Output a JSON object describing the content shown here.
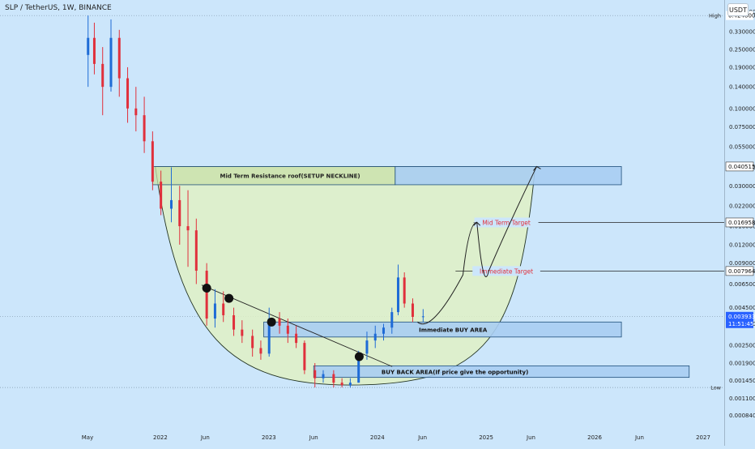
{
  "header": {
    "symbol_line": "SLP / TetherUS, 1W, BINANCE",
    "currency_button": "USDT"
  },
  "colors": {
    "background": "#cce6fb",
    "candle_up": "#1e6bd6",
    "candle_down": "#e0303c",
    "cup_fill": "#dff0c4",
    "zone_fill": "#a9cdf2",
    "zone_border": "#1f4f7a",
    "green_box": "#c8e0a8",
    "target_label": "#e0303c",
    "price_tag": "#2962ff"
  },
  "chart_data": {
    "type": "candlestick",
    "scale": "log",
    "y_axis_ticks": [
      0.45,
      0.33,
      0.25,
      0.19,
      0.14,
      0.1,
      0.075,
      0.055,
      0.04,
      0.03,
      0.022,
      0.016,
      0.012,
      0.009,
      0.0065,
      0.0045,
      0.0035,
      0.0025,
      0.0019,
      0.00145,
      0.0011,
      0.00084
    ],
    "y_axis_tick_labels": [
      "0.450000",
      "0.330000",
      "0.250000",
      "0.190000",
      "0.140000",
      "0.100000",
      "0.075000",
      "0.055000",
      "0.040000",
      "0.030000",
      "0.022000",
      "0.016000",
      "0.012000",
      "0.009000",
      "0.006500",
      "0.004500",
      "0.003500",
      "0.002500",
      "0.001900",
      "0.001450",
      "0.001100",
      "0.000840"
    ],
    "x_axis_ticks": [
      {
        "label": "May",
        "date": "2021-05"
      },
      {
        "label": "2022",
        "date": "2022-01"
      },
      {
        "label": "Jun",
        "date": "2022-06"
      },
      {
        "label": "2023",
        "date": "2023-01"
      },
      {
        "label": "Jun",
        "date": "2023-06"
      },
      {
        "label": "2024",
        "date": "2024-01"
      },
      {
        "label": "Jun",
        "date": "2024-06"
      },
      {
        "label": "2025",
        "date": "2025-01"
      },
      {
        "label": "Jun",
        "date": "2025-06"
      },
      {
        "label": "2026",
        "date": "2026-01"
      },
      {
        "label": "Jun",
        "date": "2026-06"
      },
      {
        "label": "2027",
        "date": "2027-01"
      }
    ],
    "price_labels": [
      {
        "text": "0.424800",
        "value": 0.4248,
        "tag": "High"
      },
      {
        "text": "0.040515",
        "value": 0.040515
      },
      {
        "text": "0.016958",
        "value": 0.016958
      },
      {
        "text": "0.007964",
        "value": 0.007964
      },
      {
        "text": "0.003933",
        "value": 0.003933,
        "countdown": "11:51:45"
      },
      {
        "text": "",
        "value": 0.001299,
        "tag": "Low"
      }
    ],
    "candles": [
      {
        "date": "2021-05-03",
        "o": 0.23,
        "h": 0.4248,
        "l": 0.14,
        "c": 0.3
      },
      {
        "date": "2021-05-24",
        "o": 0.3,
        "h": 0.38,
        "l": 0.17,
        "c": 0.2
      },
      {
        "date": "2021-06-21",
        "o": 0.2,
        "h": 0.26,
        "l": 0.09,
        "c": 0.14
      },
      {
        "date": "2021-07-19",
        "o": 0.14,
        "h": 0.4,
        "l": 0.13,
        "c": 0.3
      },
      {
        "date": "2021-08-16",
        "o": 0.3,
        "h": 0.34,
        "l": 0.12,
        "c": 0.16
      },
      {
        "date": "2021-09-13",
        "o": 0.16,
        "h": 0.19,
        "l": 0.08,
        "c": 0.1
      },
      {
        "date": "2021-10-11",
        "o": 0.1,
        "h": 0.14,
        "l": 0.07,
        "c": 0.09
      },
      {
        "date": "2021-11-08",
        "o": 0.09,
        "h": 0.12,
        "l": 0.05,
        "c": 0.06
      },
      {
        "date": "2021-12-06",
        "o": 0.06,
        "h": 0.07,
        "l": 0.028,
        "c": 0.032
      },
      {
        "date": "2022-01-03",
        "o": 0.032,
        "h": 0.038,
        "l": 0.019,
        "c": 0.021
      },
      {
        "date": "2022-02-07",
        "o": 0.021,
        "h": 0.04,
        "l": 0.017,
        "c": 0.024
      },
      {
        "date": "2022-03-07",
        "o": 0.024,
        "h": 0.03,
        "l": 0.012,
        "c": 0.016
      },
      {
        "date": "2022-04-04",
        "o": 0.016,
        "h": 0.028,
        "l": 0.0085,
        "c": 0.015
      },
      {
        "date": "2022-05-02",
        "o": 0.015,
        "h": 0.018,
        "l": 0.0065,
        "c": 0.008
      },
      {
        "date": "2022-06-06",
        "o": 0.008,
        "h": 0.009,
        "l": 0.0034,
        "c": 0.0038
      },
      {
        "date": "2022-07-04",
        "o": 0.0038,
        "h": 0.006,
        "l": 0.0033,
        "c": 0.0048
      },
      {
        "date": "2022-08-01",
        "o": 0.0048,
        "h": 0.0058,
        "l": 0.0036,
        "c": 0.004
      },
      {
        "date": "2022-09-05",
        "o": 0.004,
        "h": 0.0045,
        "l": 0.0029,
        "c": 0.0032
      },
      {
        "date": "2022-10-03",
        "o": 0.0032,
        "h": 0.0037,
        "l": 0.0026,
        "c": 0.0029
      },
      {
        "date": "2022-11-07",
        "o": 0.0029,
        "h": 0.0032,
        "l": 0.0021,
        "c": 0.0024
      },
      {
        "date": "2022-12-05",
        "o": 0.0024,
        "h": 0.0027,
        "l": 0.002,
        "c": 0.0022
      },
      {
        "date": "2023-01-02",
        "o": 0.0022,
        "h": 0.0045,
        "l": 0.0021,
        "c": 0.0038
      },
      {
        "date": "2023-02-06",
        "o": 0.0038,
        "h": 0.0042,
        "l": 0.003,
        "c": 0.0034
      },
      {
        "date": "2023-03-06",
        "o": 0.0034,
        "h": 0.0038,
        "l": 0.0026,
        "c": 0.003
      },
      {
        "date": "2023-04-03",
        "o": 0.003,
        "h": 0.0034,
        "l": 0.0024,
        "c": 0.0026
      },
      {
        "date": "2023-05-01",
        "o": 0.0026,
        "h": 0.0027,
        "l": 0.0016,
        "c": 0.0017
      },
      {
        "date": "2023-06-05",
        "o": 0.0017,
        "h": 0.0019,
        "l": 0.0013,
        "c": 0.0015
      },
      {
        "date": "2023-07-03",
        "o": 0.0015,
        "h": 0.0017,
        "l": 0.0014,
        "c": 0.0016
      },
      {
        "date": "2023-08-07",
        "o": 0.0016,
        "h": 0.0017,
        "l": 0.0013,
        "c": 0.0014
      },
      {
        "date": "2023-09-04",
        "o": 0.0014,
        "h": 0.0015,
        "l": 0.0013,
        "c": 0.00135
      },
      {
        "date": "2023-10-02",
        "o": 0.00135,
        "h": 0.0015,
        "l": 0.001299,
        "c": 0.0014
      },
      {
        "date": "2023-10-30",
        "o": 0.0014,
        "h": 0.0023,
        "l": 0.0014,
        "c": 0.0022
      },
      {
        "date": "2023-11-27",
        "o": 0.0022,
        "h": 0.0031,
        "l": 0.002,
        "c": 0.0027
      },
      {
        "date": "2023-12-25",
        "o": 0.0027,
        "h": 0.0034,
        "l": 0.0024,
        "c": 0.003
      },
      {
        "date": "2024-01-22",
        "o": 0.003,
        "h": 0.0035,
        "l": 0.0027,
        "c": 0.0033
      },
      {
        "date": "2024-02-19",
        "o": 0.0033,
        "h": 0.0045,
        "l": 0.003,
        "c": 0.0042
      },
      {
        "date": "2024-03-11",
        "o": 0.0042,
        "h": 0.0088,
        "l": 0.004,
        "c": 0.0072
      },
      {
        "date": "2024-04-01",
        "o": 0.0072,
        "h": 0.0078,
        "l": 0.0045,
        "c": 0.0048
      },
      {
        "date": "2024-04-29",
        "o": 0.0048,
        "h": 0.0052,
        "l": 0.0036,
        "c": 0.0039
      },
      {
        "date": "2024-06-03",
        "o": 0.0039,
        "h": 0.0044,
        "l": 0.0036,
        "c": 0.003933
      }
    ],
    "zones": [
      {
        "label": "Mid Term Resistance roof(SETUP NECKLINE)",
        "from": "2021-12-06",
        "to": "2026-04-01",
        "low": 0.0305,
        "high": 0.0405
      },
      {
        "label": "Immediate BUY AREA",
        "from": "2022-12-15",
        "to": "2026-04-01",
        "low": 0.00285,
        "high": 0.0036
      },
      {
        "label": "BUY BACK AREA(If price give the opportunity)",
        "from": "2023-06-01",
        "to": "2026-11-15",
        "low": 0.00152,
        "high": 0.00182
      }
    ],
    "targets": [
      {
        "label": "Mid Term Target",
        "value": 0.016958
      },
      {
        "label": "Immediate Target",
        "value": 0.007964
      }
    ],
    "markers": [
      {
        "date": "2022-06-06",
        "value": 0.0061
      },
      {
        "date": "2022-08-20",
        "value": 0.0052
      },
      {
        "date": "2023-01-10",
        "value": 0.0036
      },
      {
        "date": "2023-11-01",
        "value": 0.0021
      }
    ],
    "neckline": {
      "from": {
        "date": "2022-05-20",
        "value": 0.0064
      },
      "to": {
        "date": "2024-02-20",
        "value": 0.0018
      }
    },
    "cup": {
      "left": {
        "date": "2021-12-15",
        "value": 0.0405
      },
      "bottom": {
        "date": "2023-10-01",
        "value": 0.00135
      },
      "right": {
        "date": "2025-06-15",
        "value": 0.0405
      }
    },
    "projection": [
      {
        "date": "2024-05-15",
        "value": 0.0036
      },
      {
        "date": "2024-07-01",
        "value": 0.0034
      },
      {
        "date": "2024-10-15",
        "value": 0.0075
      },
      {
        "date": "2024-12-01",
        "value": 0.017
      },
      {
        "date": "2025-01-10",
        "value": 0.008
      },
      {
        "date": "2025-03-15",
        "value": 0.016
      },
      {
        "date": "2025-06-20",
        "value": 0.0405
      }
    ]
  }
}
